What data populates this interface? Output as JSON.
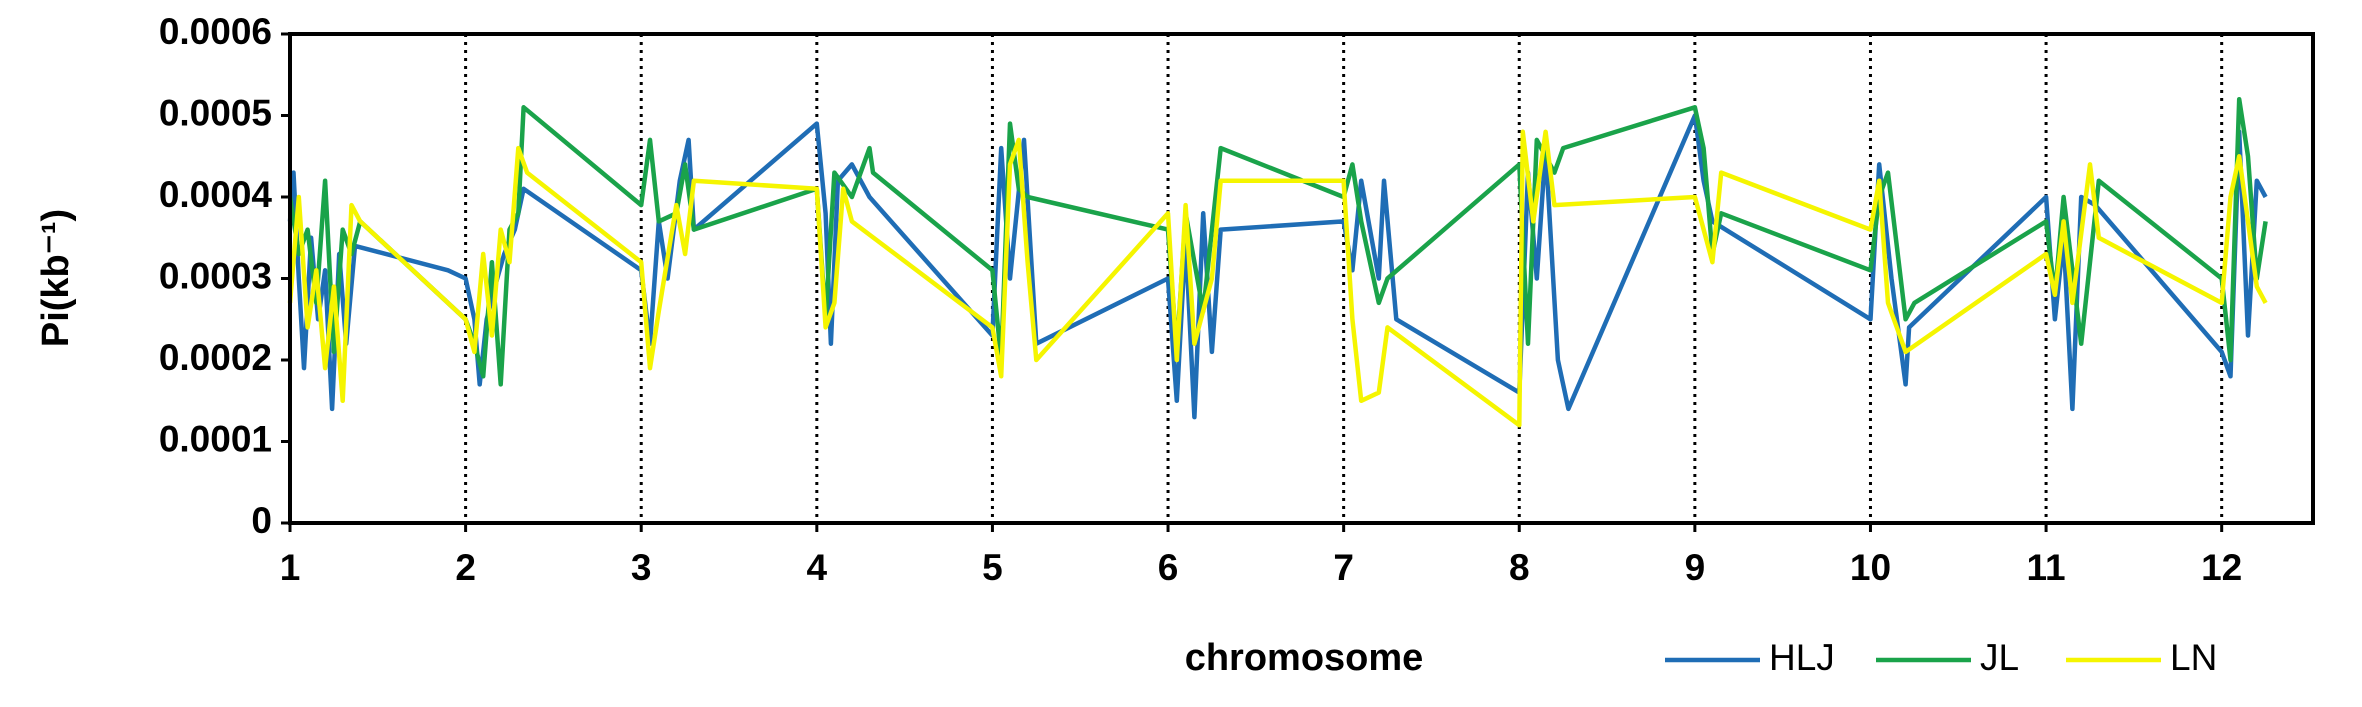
{
  "chart_data": {
    "type": "line",
    "x_label": "chromosome",
    "y_label": "Pi(kb⁻¹)",
    "xlim": [
      1,
      12.52
    ],
    "ylim": [
      0,
      0.0006
    ],
    "xticks": [
      1,
      2,
      3,
      4,
      5,
      6,
      7,
      8,
      9,
      10,
      11,
      12
    ],
    "yticks": [
      0,
      0.0001,
      0.0002,
      0.0003,
      0.0004,
      0.0005,
      0.0006
    ],
    "vertical_grid": true,
    "legend": "bottom-right",
    "series": [
      {
        "name": "HLJ",
        "color": "#1f6db5",
        "x": [
          1.0,
          1.02,
          1.05,
          1.08,
          1.12,
          1.16,
          1.2,
          1.24,
          1.28,
          1.32,
          1.37,
          1.9,
          2.0,
          2.05,
          2.08,
          2.12,
          2.18,
          2.22,
          2.28,
          2.33,
          3.0,
          3.05,
          3.1,
          3.15,
          3.22,
          3.27,
          3.3,
          4.0,
          4.05,
          4.08,
          4.12,
          4.2,
          4.3,
          5.0,
          5.05,
          5.1,
          5.18,
          5.25,
          6.0,
          6.05,
          6.1,
          6.15,
          6.2,
          6.25,
          6.3,
          7.0,
          7.05,
          7.1,
          7.2,
          7.23,
          7.3,
          8.0,
          8.05,
          8.1,
          8.15,
          8.22,
          8.28,
          9.0,
          9.05,
          9.1,
          10.0,
          10.05,
          10.12,
          10.2,
          10.22,
          11.0,
          11.05,
          11.1,
          11.15,
          11.2,
          11.28,
          12.0,
          12.05,
          12.1,
          12.15,
          12.2,
          12.25
        ],
        "values": [
          0.00037,
          0.00043,
          0.0003,
          0.00019,
          0.00035,
          0.00025,
          0.00031,
          0.00014,
          0.00033,
          0.00022,
          0.00034,
          0.00031,
          0.0003,
          0.00025,
          0.00017,
          0.00025,
          0.0003,
          0.00033,
          0.00036,
          0.00041,
          0.00031,
          0.00022,
          0.00037,
          0.0003,
          0.00042,
          0.00047,
          0.00036,
          0.00049,
          0.00038,
          0.00022,
          0.00042,
          0.00044,
          0.0004,
          0.00023,
          0.00046,
          0.0003,
          0.00047,
          0.00022,
          0.0003,
          0.00015,
          0.00035,
          0.00013,
          0.00038,
          0.00021,
          0.00036,
          0.00037,
          0.00031,
          0.00042,
          0.0003,
          0.00042,
          0.00025,
          0.00016,
          0.00043,
          0.0003,
          0.00046,
          0.0002,
          0.00014,
          0.0005,
          0.00042,
          0.00037,
          0.00025,
          0.00044,
          0.0003,
          0.00017,
          0.00024,
          0.0004,
          0.00025,
          0.00035,
          0.00014,
          0.0004,
          0.00039,
          0.00021,
          0.00018,
          0.00048,
          0.00023,
          0.00042,
          0.0004
        ]
      },
      {
        "name": "JL",
        "color": "#1aa34a",
        "x": [
          1.0,
          1.05,
          1.1,
          1.15,
          1.2,
          1.25,
          1.3,
          1.35,
          1.4,
          2.0,
          2.05,
          2.1,
          2.15,
          2.2,
          2.25,
          2.3,
          2.33,
          3.0,
          3.05,
          3.1,
          3.2,
          3.25,
          3.3,
          4.0,
          4.05,
          4.1,
          4.2,
          4.3,
          4.32,
          5.0,
          5.05,
          5.1,
          5.15,
          5.2,
          6.0,
          6.05,
          6.1,
          6.2,
          6.3,
          7.0,
          7.05,
          7.1,
          7.2,
          7.25,
          8.0,
          8.05,
          8.1,
          8.2,
          8.25,
          9.0,
          9.05,
          9.1,
          9.15,
          10.0,
          10.05,
          10.1,
          10.2,
          10.25,
          11.0,
          11.05,
          11.1,
          11.2,
          11.3,
          12.0,
          12.05,
          12.1,
          12.15,
          12.2,
          12.25
        ],
        "values": [
          0.0004,
          0.00033,
          0.00036,
          0.00027,
          0.00042,
          0.00021,
          0.00036,
          0.00033,
          0.00037,
          0.00025,
          0.00022,
          0.00018,
          0.00032,
          0.00017,
          0.00036,
          0.00038,
          0.00051,
          0.00039,
          0.00047,
          0.00037,
          0.00038,
          0.00044,
          0.00036,
          0.00041,
          0.00025,
          0.00043,
          0.0004,
          0.00046,
          0.00043,
          0.00031,
          0.0002,
          0.00049,
          0.00041,
          0.0004,
          0.00036,
          0.00021,
          0.00038,
          0.00026,
          0.00046,
          0.0004,
          0.00044,
          0.00037,
          0.00027,
          0.0003,
          0.00044,
          0.00022,
          0.00047,
          0.00043,
          0.00046,
          0.00051,
          0.00046,
          0.00033,
          0.00038,
          0.00031,
          0.0004,
          0.00043,
          0.00025,
          0.00027,
          0.00037,
          0.00028,
          0.0004,
          0.00022,
          0.00042,
          0.0003,
          0.0002,
          0.00052,
          0.00045,
          0.0003,
          0.00037
        ]
      },
      {
        "name": "LN",
        "color": "#f5f500",
        "x": [
          1.0,
          1.05,
          1.1,
          1.15,
          1.2,
          1.25,
          1.3,
          1.35,
          1.4,
          2.0,
          2.05,
          2.1,
          2.15,
          2.2,
          2.25,
          2.3,
          2.35,
          3.0,
          3.05,
          3.1,
          3.2,
          3.25,
          3.3,
          4.0,
          4.05,
          4.1,
          4.15,
          4.2,
          5.0,
          5.05,
          5.1,
          5.15,
          5.2,
          5.25,
          6.0,
          6.05,
          6.1,
          6.15,
          6.25,
          6.3,
          7.0,
          7.05,
          7.1,
          7.2,
          7.25,
          8.0,
          8.02,
          8.08,
          8.15,
          8.2,
          9.0,
          9.1,
          9.15,
          10.0,
          10.05,
          10.1,
          10.2,
          11.0,
          11.05,
          11.1,
          11.15,
          11.25,
          11.3,
          12.0,
          12.05,
          12.1,
          12.2,
          12.25
        ],
        "values": [
          0.00027,
          0.0004,
          0.00024,
          0.00031,
          0.00019,
          0.00029,
          0.00015,
          0.00039,
          0.00037,
          0.00025,
          0.00021,
          0.00033,
          0.00023,
          0.00036,
          0.00032,
          0.00046,
          0.00043,
          0.00032,
          0.00019,
          0.00026,
          0.00039,
          0.00033,
          0.00042,
          0.00041,
          0.00024,
          0.00027,
          0.00041,
          0.00037,
          0.00024,
          0.00018,
          0.00044,
          0.00047,
          0.00032,
          0.0002,
          0.00038,
          0.0002,
          0.00039,
          0.00022,
          0.0003,
          0.00042,
          0.00042,
          0.00025,
          0.00015,
          0.00016,
          0.00024,
          0.00012,
          0.00048,
          0.00037,
          0.00048,
          0.00039,
          0.0004,
          0.00032,
          0.00043,
          0.00036,
          0.00042,
          0.00027,
          0.00021,
          0.00033,
          0.00028,
          0.00037,
          0.00027,
          0.00044,
          0.00035,
          0.00027,
          0.0004,
          0.00045,
          0.00029,
          0.00027
        ]
      }
    ]
  }
}
